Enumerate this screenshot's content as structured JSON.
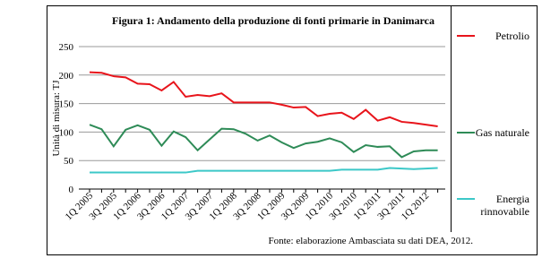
{
  "chart_data": {
    "type": "line",
    "title": "Figura 1: Andamento della produzione di fonti primarie in Danimarca",
    "y_label": "Unità di misura: TJ",
    "source": "Fonte: elaborazione Ambasciata su dati DEA, 2012.",
    "categories": [
      "1Q 2005",
      null,
      "3Q 2005",
      null,
      "1Q 2006",
      null,
      "3Q 2006",
      null,
      "1Q 2007",
      null,
      "3Q 2007",
      null,
      "1Q 2008",
      null,
      "3Q 2008",
      null,
      "1Q 2009",
      null,
      "3Q 2009",
      null,
      "1Q 2010",
      null,
      "3Q 2010",
      null,
      "1Q 2011",
      null,
      "3Q 2011",
      null,
      "1Q 2012",
      null
    ],
    "series": [
      {
        "name": "Petrolio",
        "color": "#e8141b",
        "values": [
          205,
          204,
          198,
          196,
          185,
          184,
          173,
          188,
          162,
          165,
          163,
          168,
          152,
          152,
          152,
          152,
          148,
          143,
          144,
          128,
          132,
          134,
          123,
          139,
          120,
          126,
          118,
          116,
          113,
          110
        ]
      },
      {
        "name": "Gas naturale",
        "color": "#2e8b57",
        "values": [
          113,
          105,
          75,
          104,
          112,
          104,
          76,
          101,
          91,
          68,
          87,
          106,
          105,
          97,
          85,
          94,
          82,
          72,
          80,
          83,
          89,
          82,
          65,
          77,
          74,
          75,
          56,
          66,
          68,
          68
        ]
      },
      {
        "name": "Energia rinnovabile",
        "color": "#3cc8c8",
        "values": [
          29,
          29,
          29,
          29,
          29,
          29,
          29,
          29,
          29,
          32,
          32,
          32,
          32,
          32,
          32,
          32,
          32,
          32,
          32,
          32,
          32,
          34,
          34,
          34,
          34,
          37,
          36,
          35,
          36,
          37
        ]
      }
    ],
    "ylim": [
      0,
      250
    ],
    "yticks": [
      0,
      50,
      100,
      150,
      200,
      250
    ],
    "grid": true
  }
}
